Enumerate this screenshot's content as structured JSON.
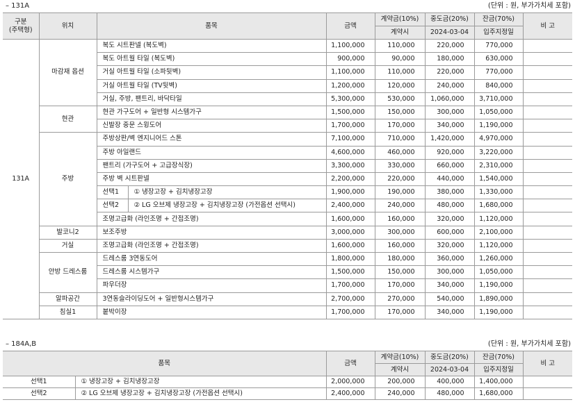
{
  "section1": {
    "title": "– 131A",
    "unit": "(단위 : 원, 부가가치세 포함)",
    "headers": {
      "type": "구분\n(주택형)",
      "type_line1": "구분",
      "type_line2": "(주택형)",
      "location": "위치",
      "item": "품목",
      "amount": "금액",
      "deposit": "계약금(10%)",
      "deposit_when": "계약시",
      "middle": "중도금(20%)",
      "middle_when": "2024-03-04",
      "balance": "잔금(70%)",
      "balance_when": "입주지정일",
      "note": "비 고"
    },
    "type_value": "131A",
    "groups": [
      {
        "location": "마감재 옵션",
        "rows": [
          {
            "item": "복도 시트판넬 (복도벽)",
            "amount": "1,100,000",
            "deposit": "110,000",
            "middle": "220,000",
            "balance": "770,000"
          },
          {
            "item": "복도 아트월 타일 (복도벽)",
            "amount": "900,000",
            "deposit": "90,000",
            "middle": "180,000",
            "balance": "630,000"
          },
          {
            "item": "거실 아트월 타일 (소파뒷벽)",
            "amount": "1,100,000",
            "deposit": "110,000",
            "middle": "220,000",
            "balance": "770,000"
          },
          {
            "item": "거실 아트월 타일 (TV뒷벽)",
            "amount": "1,200,000",
            "deposit": "120,000",
            "middle": "240,000",
            "balance": "840,000"
          },
          {
            "item": "거실, 주방, 팬트리, 바닥타일",
            "amount": "5,300,000",
            "deposit": "530,000",
            "middle": "1,060,000",
            "balance": "3,710,000"
          }
        ]
      },
      {
        "location": "현관",
        "rows": [
          {
            "item": "현관 가구도어 + 일반형 시스템가구",
            "amount": "1,500,000",
            "deposit": "150,000",
            "middle": "300,000",
            "balance": "1,050,000"
          },
          {
            "item": "신발장 중문 스윙도어",
            "amount": "1,700,000",
            "deposit": "170,000",
            "middle": "340,000",
            "balance": "1,190,000"
          }
        ]
      },
      {
        "location": "주방",
        "rows": [
          {
            "item": "주방상판/벽 엔지니어드 스톤",
            "amount": "7,100,000",
            "deposit": "710,000",
            "middle": "1,420,000",
            "balance": "4,970,000"
          },
          {
            "item": "주방 아일랜드",
            "amount": "4,600,000",
            "deposit": "460,000",
            "middle": "920,000",
            "balance": "3,220,000"
          },
          {
            "item": "팬트리 (가구도어 + 고급장식장)",
            "amount": "3,300,000",
            "deposit": "330,000",
            "middle": "660,000",
            "balance": "2,310,000"
          },
          {
            "item": "주방 벽 시트판넬",
            "amount": "2,200,000",
            "deposit": "220,000",
            "middle": "440,000",
            "balance": "1,540,000"
          },
          {
            "choice": "선택1",
            "item": "① 냉장고장 + 김치냉장고장",
            "amount": "1,900,000",
            "deposit": "190,000",
            "middle": "380,000",
            "balance": "1,330,000"
          },
          {
            "choice": "선택2",
            "item": "② LG 오브제 냉장고장 + 김치냉장고장 (가전옵션 선택시)",
            "amount": "2,400,000",
            "deposit": "240,000",
            "middle": "480,000",
            "balance": "1,680,000"
          },
          {
            "item": "조명고급화 (라인조명 + 간접조명)",
            "amount": "1,600,000",
            "deposit": "160,000",
            "middle": "320,000",
            "balance": "1,120,000"
          }
        ]
      },
      {
        "location": "발코니2",
        "rows": [
          {
            "item": "보조주방",
            "amount": "3,000,000",
            "deposit": "300,000",
            "middle": "600,000",
            "balance": "2,100,000"
          }
        ]
      },
      {
        "location": "거실",
        "rows": [
          {
            "item": "조명고급화 (라인조명 + 간접조명)",
            "amount": "1,600,000",
            "deposit": "160,000",
            "middle": "320,000",
            "balance": "1,120,000"
          }
        ]
      },
      {
        "location": "안방 드레스룸",
        "rows": [
          {
            "item": "드레스룸 3연동도어",
            "amount": "1,800,000",
            "deposit": "180,000",
            "middle": "360,000",
            "balance": "1,260,000"
          },
          {
            "item": "드레스룸 시스템가구",
            "amount": "1,500,000",
            "deposit": "150,000",
            "middle": "300,000",
            "balance": "1,050,000"
          },
          {
            "item": "파우더장",
            "amount": "1,700,000",
            "deposit": "170,000",
            "middle": "340,000",
            "balance": "1,190,000"
          }
        ]
      },
      {
        "location": "알파공간",
        "rows": [
          {
            "item": "3연동슬라이딩도어 + 일반형시스템가구",
            "amount": "2,700,000",
            "deposit": "270,000",
            "middle": "540,000",
            "balance": "1,890,000"
          }
        ]
      },
      {
        "location": "침실1",
        "rows": [
          {
            "item": "붙박이장",
            "amount": "1,700,000",
            "deposit": "170,000",
            "middle": "340,000",
            "balance": "1,190,000"
          }
        ]
      }
    ]
  },
  "section2": {
    "title": "– 184A,B",
    "unit": "(단위 : 원, 부가가치세 포함)",
    "headers": {
      "item": "품목",
      "amount": "금액",
      "deposit": "계약금(10%)",
      "deposit_when": "계약시",
      "middle": "중도금(20%)",
      "middle_when": "2024-03-04",
      "balance": "잔금(70%)",
      "balance_when": "입주지정일",
      "note": "비 고"
    },
    "rows": [
      {
        "choice": "선택1",
        "item": "① 냉장고장 + 김치냉장고장",
        "amount": "2,000,000",
        "deposit": "200,000",
        "middle": "400,000",
        "balance": "1,400,000"
      },
      {
        "choice": "선택2",
        "item": "② LG 오브제 냉장고장 + 김치냉장고장 (가전옵션 선택시)",
        "amount": "2,400,000",
        "deposit": "240,000",
        "middle": "480,000",
        "balance": "1,680,000"
      }
    ]
  }
}
